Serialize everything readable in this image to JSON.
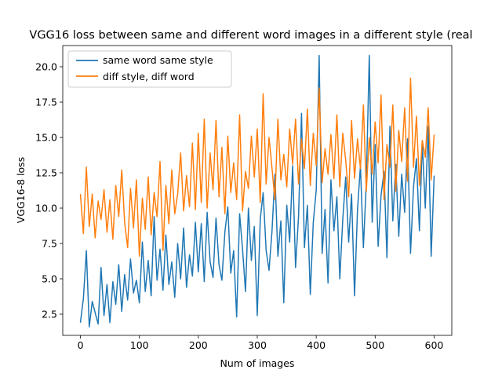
{
  "chart_data": {
    "type": "line",
    "title": "VGG16 loss between same and different word images in a different style (real",
    "xlabel": "Num of images",
    "ylabel": "VGG16-8 loss",
    "xlim": [
      -30,
      630
    ],
    "ylim": [
      1.0,
      21.5
    ],
    "xticks": [
      0,
      100,
      200,
      300,
      400,
      500,
      600
    ],
    "xtick_labels": [
      "0",
      "100",
      "200",
      "300",
      "400",
      "500",
      "600"
    ],
    "yticks": [
      2.5,
      5.0,
      7.5,
      10.0,
      12.5,
      15.0,
      17.5,
      20.0
    ],
    "ytick_labels": [
      "2.5",
      "5.0",
      "7.5",
      "10.0",
      "12.5",
      "15.0",
      "17.5",
      "20.0"
    ],
    "grid": false,
    "legend_position": "top-left",
    "series": [
      {
        "name": "same word same style",
        "color": "#1f77b4",
        "x": [
          0,
          5,
          10,
          15,
          20,
          25,
          30,
          35,
          40,
          45,
          50,
          55,
          60,
          65,
          70,
          75,
          80,
          85,
          90,
          95,
          100,
          105,
          110,
          115,
          120,
          125,
          130,
          135,
          140,
          145,
          150,
          155,
          160,
          165,
          170,
          175,
          180,
          185,
          190,
          195,
          200,
          205,
          210,
          215,
          220,
          225,
          230,
          235,
          240,
          245,
          250,
          255,
          260,
          265,
          270,
          275,
          280,
          285,
          290,
          295,
          300,
          305,
          310,
          315,
          320,
          325,
          330,
          335,
          340,
          345,
          350,
          355,
          360,
          365,
          370,
          375,
          380,
          385,
          390,
          395,
          400,
          405,
          410,
          415,
          420,
          425,
          430,
          435,
          440,
          445,
          450,
          455,
          460,
          465,
          470,
          475,
          480,
          485,
          490,
          495,
          500,
          505,
          510,
          515,
          520,
          525,
          530,
          535,
          540,
          545,
          550,
          555,
          560,
          565,
          570,
          575,
          580,
          585,
          590,
          595,
          600
        ],
        "y": [
          1.9,
          3.6,
          7.0,
          1.6,
          3.4,
          2.6,
          1.8,
          5.8,
          2.4,
          4.6,
          1.9,
          4.8,
          3.2,
          6.0,
          2.7,
          5.3,
          3.5,
          6.4,
          4.0,
          4.9,
          3.3,
          7.6,
          4.1,
          6.3,
          3.8,
          9.4,
          4.9,
          7.1,
          4.2,
          8.1,
          4.6,
          6.2,
          3.7,
          7.5,
          5.0,
          8.6,
          4.4,
          6.7,
          5.2,
          9.0,
          5.5,
          8.9,
          4.8,
          9.7,
          6.2,
          5.1,
          9.3,
          6.0,
          4.9,
          8.3,
          10.1,
          5.4,
          7.0,
          2.3,
          9.6,
          7.1,
          4.1,
          10.0,
          6.3,
          8.7,
          2.4,
          9.2,
          11.1,
          7.0,
          5.6,
          8.4,
          12.4,
          6.6,
          9.1,
          3.3,
          10.2,
          7.6,
          13.0,
          5.8,
          9.4,
          16.7,
          7.2,
          10.2,
          3.9,
          9.0,
          11.3,
          20.8,
          6.8,
          9.9,
          4.7,
          12.0,
          8.4,
          10.8,
          5.0,
          9.2,
          12.2,
          7.6,
          11.0,
          3.8,
          9.9,
          13.0,
          7.2,
          11.8,
          20.8,
          9.0,
          14.5,
          7.3,
          10.9,
          12.6,
          6.5,
          15.8,
          9.1,
          13.1,
          8.0,
          12.4,
          9.7,
          14.9,
          6.8,
          11.5,
          13.5,
          8.4,
          14.6,
          10.0,
          15.8,
          6.6,
          12.3
        ]
      },
      {
        "name": "diff style, diff word",
        "color": "#ff7f0e",
        "x": [
          0,
          5,
          10,
          15,
          20,
          25,
          30,
          35,
          40,
          45,
          50,
          55,
          60,
          65,
          70,
          75,
          80,
          85,
          90,
          95,
          100,
          105,
          110,
          115,
          120,
          125,
          130,
          135,
          140,
          145,
          150,
          155,
          160,
          165,
          170,
          175,
          180,
          185,
          190,
          195,
          200,
          205,
          210,
          215,
          220,
          225,
          230,
          235,
          240,
          245,
          250,
          255,
          260,
          265,
          270,
          275,
          280,
          285,
          290,
          295,
          300,
          305,
          310,
          315,
          320,
          325,
          330,
          335,
          340,
          345,
          350,
          355,
          360,
          365,
          370,
          375,
          380,
          385,
          390,
          395,
          400,
          405,
          410,
          415,
          420,
          425,
          430,
          435,
          440,
          445,
          450,
          455,
          460,
          465,
          470,
          475,
          480,
          485,
          490,
          495,
          500,
          505,
          510,
          515,
          520,
          525,
          530,
          535,
          540,
          545,
          550,
          555,
          560,
          565,
          570,
          575,
          580,
          585,
          590,
          595,
          600
        ],
        "y": [
          11.0,
          8.2,
          12.9,
          8.7,
          11.0,
          7.9,
          10.5,
          9.2,
          11.3,
          8.3,
          10.6,
          7.8,
          11.6,
          9.4,
          12.7,
          9.0,
          7.2,
          11.4,
          8.6,
          12.0,
          6.6,
          10.7,
          8.5,
          12.2,
          8.1,
          11.1,
          9.4,
          13.3,
          7.0,
          11.6,
          8.9,
          12.7,
          9.6,
          11.0,
          13.9,
          9.8,
          12.3,
          10.1,
          14.6,
          9.9,
          15.3,
          10.4,
          16.3,
          10.0,
          13.9,
          11.3,
          16.2,
          10.8,
          14.3,
          9.6,
          15.1,
          11.1,
          13.2,
          10.6,
          16.6,
          9.8,
          12.6,
          11.4,
          15.1,
          12.2,
          15.6,
          10.4,
          18.1,
          11.7,
          15.0,
          12.8,
          10.6,
          16.3,
          12.0,
          13.8,
          11.5,
          15.6,
          13.1,
          16.3,
          11.7,
          14.9,
          12.8,
          17.0,
          11.6,
          15.3,
          13.0,
          18.5,
          11.8,
          14.2,
          12.4,
          15.2,
          12.1,
          16.6,
          11.5,
          15.3,
          13.4,
          10.8,
          16.2,
          12.1,
          14.9,
          12.8,
          17.3,
          11.2,
          15.0,
          12.4,
          16.1,
          13.2,
          18.0,
          10.6,
          14.5,
          12.9,
          17.3,
          11.2,
          15.5,
          13.3,
          17.1,
          11.9,
          19.2,
          12.9,
          16.5,
          11.6,
          14.8,
          13.6,
          17.1,
          12.0,
          15.2
        ]
      }
    ]
  }
}
